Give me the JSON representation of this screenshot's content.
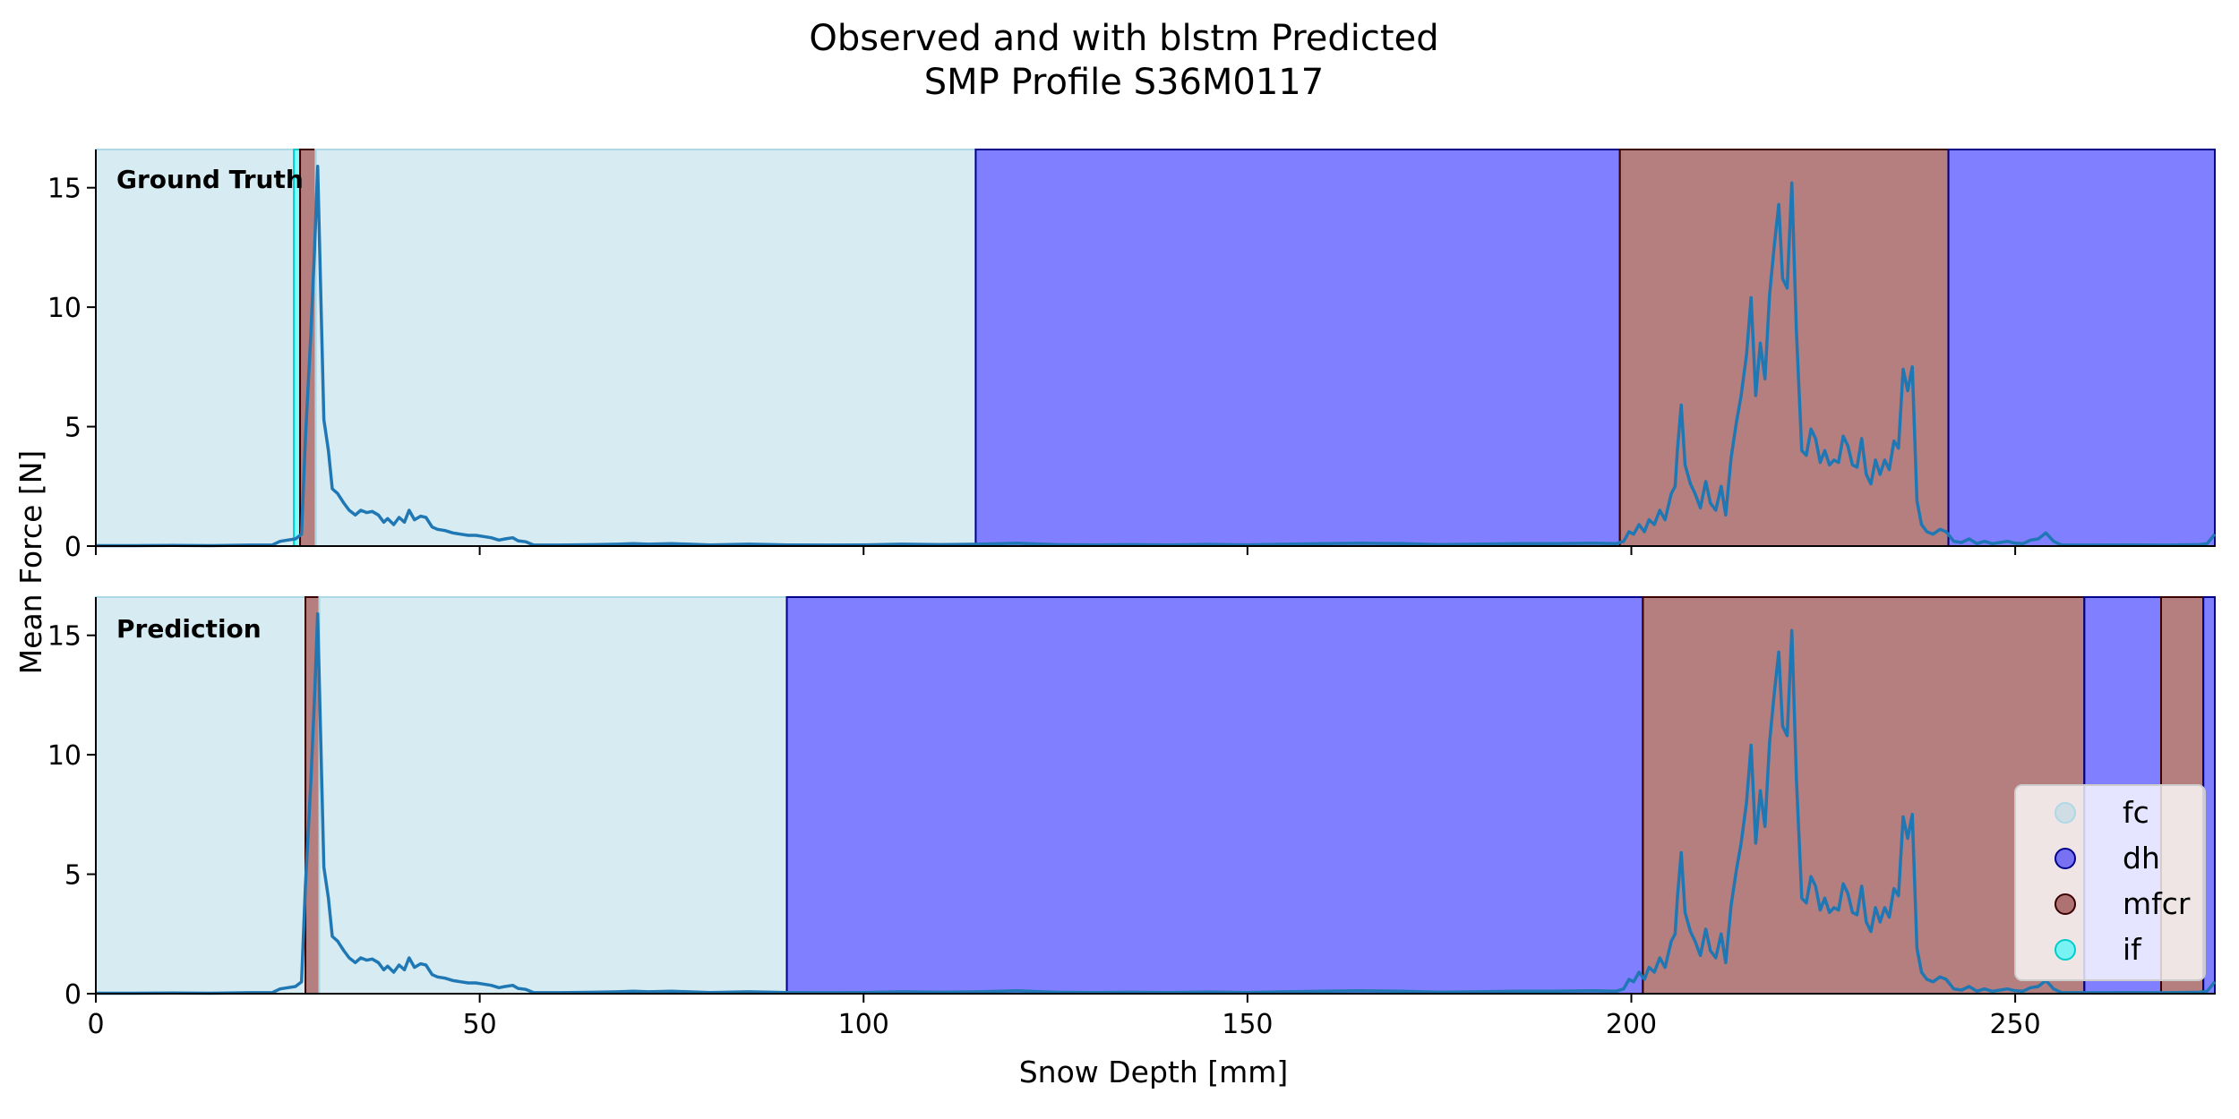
{
  "figure": {
    "title_line1": "Observed and with blstm Predicted",
    "title_line2": "SMP Profile S36M0117",
    "xlabel": "Snow Depth [mm]",
    "ylabel": "Mean Force [N]"
  },
  "chart_data": {
    "type": "line",
    "x_range": [
      0,
      276
    ],
    "y_range": [
      0,
      16.6
    ],
    "x_ticks": [
      0,
      50,
      100,
      150,
      200,
      250
    ],
    "y_ticks": [
      0,
      5,
      10,
      15
    ],
    "grid": false,
    "line_color": "#1f77b4",
    "signal": {
      "name": "Mean Force",
      "points": [
        [
          0,
          0.02
        ],
        [
          5,
          0.02
        ],
        [
          10,
          0.03
        ],
        [
          15,
          0.02
        ],
        [
          20,
          0.04
        ],
        [
          23,
          0.05
        ],
        [
          24,
          0.2
        ],
        [
          25,
          0.25
        ],
        [
          26,
          0.3
        ],
        [
          26.8,
          0.5
        ],
        [
          27.3,
          4.5
        ],
        [
          28,
          8.8
        ],
        [
          28.5,
          12.5
        ],
        [
          28.9,
          15.9
        ],
        [
          29.3,
          10.5
        ],
        [
          29.7,
          5.3
        ],
        [
          30.3,
          4.0
        ],
        [
          30.8,
          2.4
        ],
        [
          31.5,
          2.2
        ],
        [
          32.3,
          1.8
        ],
        [
          33,
          1.5
        ],
        [
          33.8,
          1.3
        ],
        [
          34.5,
          1.5
        ],
        [
          35.3,
          1.4
        ],
        [
          36,
          1.45
        ],
        [
          36.8,
          1.3
        ],
        [
          37.5,
          1.0
        ],
        [
          38,
          1.15
        ],
        [
          38.8,
          0.9
        ],
        [
          39.5,
          1.2
        ],
        [
          40.2,
          1.0
        ],
        [
          40.8,
          1.5
        ],
        [
          41.5,
          1.1
        ],
        [
          42.3,
          1.25
        ],
        [
          43,
          1.2
        ],
        [
          43.8,
          0.8
        ],
        [
          44.5,
          0.7
        ],
        [
          45.5,
          0.65
        ],
        [
          46.5,
          0.55
        ],
        [
          47.5,
          0.5
        ],
        [
          48.5,
          0.45
        ],
        [
          49.5,
          0.45
        ],
        [
          50.5,
          0.4
        ],
        [
          51.5,
          0.35
        ],
        [
          52.5,
          0.25
        ],
        [
          53.3,
          0.3
        ],
        [
          54.3,
          0.35
        ],
        [
          55,
          0.22
        ],
        [
          56,
          0.18
        ],
        [
          57,
          0.05
        ],
        [
          60,
          0.04
        ],
        [
          65,
          0.06
        ],
        [
          68,
          0.08
        ],
        [
          70,
          0.1
        ],
        [
          72,
          0.08
        ],
        [
          75,
          0.1
        ],
        [
          78,
          0.07
        ],
        [
          80,
          0.05
        ],
        [
          85,
          0.08
        ],
        [
          88,
          0.06
        ],
        [
          90,
          0.05
        ],
        [
          95,
          0.04
        ],
        [
          100,
          0.05
        ],
        [
          105,
          0.08
        ],
        [
          110,
          0.06
        ],
        [
          115,
          0.08
        ],
        [
          118,
          0.1
        ],
        [
          120,
          0.12
        ],
        [
          125,
          0.06
        ],
        [
          130,
          0.05
        ],
        [
          135,
          0.06
        ],
        [
          140,
          0.05
        ],
        [
          145,
          0.07
        ],
        [
          150,
          0.05
        ],
        [
          155,
          0.08
        ],
        [
          160,
          0.1
        ],
        [
          165,
          0.12
        ],
        [
          170,
          0.1
        ],
        [
          175,
          0.06
        ],
        [
          180,
          0.08
        ],
        [
          185,
          0.1
        ],
        [
          190,
          0.1
        ],
        [
          195,
          0.12
        ],
        [
          198,
          0.1
        ],
        [
          199,
          0.2
        ],
        [
          199.7,
          0.6
        ],
        [
          200.3,
          0.5
        ],
        [
          201,
          0.9
        ],
        [
          201.7,
          0.6
        ],
        [
          202.3,
          1.1
        ],
        [
          203,
          0.9
        ],
        [
          203.7,
          1.5
        ],
        [
          204.4,
          1.1
        ],
        [
          205.2,
          2.2
        ],
        [
          205.7,
          2.5
        ],
        [
          206,
          4.0
        ],
        [
          206.5,
          5.9
        ],
        [
          207,
          3.4
        ],
        [
          207.7,
          2.6
        ],
        [
          208.3,
          2.2
        ],
        [
          209,
          1.6
        ],
        [
          209.7,
          2.7
        ],
        [
          210.3,
          1.8
        ],
        [
          211,
          1.5
        ],
        [
          211.7,
          2.5
        ],
        [
          212.3,
          1.3
        ],
        [
          213,
          3.7
        ],
        [
          213.7,
          5.2
        ],
        [
          214.3,
          6.3
        ],
        [
          215,
          8.0
        ],
        [
          215.6,
          10.4
        ],
        [
          216.2,
          6.3
        ],
        [
          216.8,
          8.5
        ],
        [
          217.4,
          7.0
        ],
        [
          218,
          10.5
        ],
        [
          218.6,
          12.5
        ],
        [
          219.2,
          14.3
        ],
        [
          219.7,
          11.2
        ],
        [
          220.3,
          10.8
        ],
        [
          220.9,
          15.2
        ],
        [
          221.5,
          9.0
        ],
        [
          222.2,
          4.0
        ],
        [
          222.8,
          3.8
        ],
        [
          223.4,
          4.9
        ],
        [
          224,
          4.5
        ],
        [
          224.6,
          3.5
        ],
        [
          225.2,
          4.0
        ],
        [
          225.8,
          3.4
        ],
        [
          226.4,
          3.6
        ],
        [
          227,
          3.5
        ],
        [
          227.6,
          4.6
        ],
        [
          228.2,
          4.2
        ],
        [
          228.8,
          3.4
        ],
        [
          229.4,
          3.3
        ],
        [
          230,
          4.5
        ],
        [
          230.6,
          3.0
        ],
        [
          231.2,
          2.6
        ],
        [
          231.8,
          3.6
        ],
        [
          232.4,
          3.0
        ],
        [
          233,
          3.6
        ],
        [
          233.6,
          3.2
        ],
        [
          234.2,
          4.4
        ],
        [
          234.8,
          4.1
        ],
        [
          235.4,
          7.4
        ],
        [
          236,
          6.5
        ],
        [
          236.6,
          7.5
        ],
        [
          237.2,
          1.9
        ],
        [
          237.8,
          0.9
        ],
        [
          238.5,
          0.6
        ],
        [
          239.3,
          0.5
        ],
        [
          240.2,
          0.7
        ],
        [
          241,
          0.6
        ],
        [
          242,
          0.2
        ],
        [
          243,
          0.15
        ],
        [
          244,
          0.3
        ],
        [
          245,
          0.1
        ],
        [
          246,
          0.2
        ],
        [
          247,
          0.1
        ],
        [
          248,
          0.15
        ],
        [
          249,
          0.2
        ],
        [
          250,
          0.12
        ],
        [
          251,
          0.1
        ],
        [
          252,
          0.25
        ],
        [
          253,
          0.3
        ],
        [
          254,
          0.55
        ],
        [
          255,
          0.2
        ],
        [
          256,
          0.05
        ],
        [
          260,
          0.04
        ],
        [
          265,
          0.05
        ],
        [
          270,
          0.04
        ],
        [
          274,
          0.06
        ],
        [
          275,
          0.1
        ],
        [
          276,
          0.5
        ]
      ]
    },
    "classes": [
      {
        "name": "fc",
        "color": "#add8e6",
        "alpha": 0.5,
        "edge": "#add8e6"
      },
      {
        "name": "dh",
        "color": "#0000ff",
        "alpha": 0.5,
        "edge": "#00008b"
      },
      {
        "name": "mfcr",
        "color": "#6b0000",
        "alpha": 0.5,
        "edge": "#3a0000"
      },
      {
        "name": "if",
        "color": "#00ffff",
        "alpha": 0.5,
        "edge": "#00cccc"
      }
    ],
    "panels": [
      {
        "label": "Ground Truth",
        "segments": [
          {
            "from": 0,
            "to": 25.8,
            "class": "fc"
          },
          {
            "from": 25.8,
            "to": 26.6,
            "class": "if"
          },
          {
            "from": 26.6,
            "to": 28.6,
            "class": "mfcr"
          },
          {
            "from": 28.6,
            "to": 114.6,
            "class": "fc"
          },
          {
            "from": 114.6,
            "to": 198.5,
            "class": "dh"
          },
          {
            "from": 198.5,
            "to": 241.3,
            "class": "mfcr"
          },
          {
            "from": 241.3,
            "to": 276,
            "class": "dh"
          }
        ]
      },
      {
        "label": "Prediction",
        "segments": [
          {
            "from": 0,
            "to": 27.3,
            "class": "fc"
          },
          {
            "from": 27.3,
            "to": 29.1,
            "class": "mfcr"
          },
          {
            "from": 29.1,
            "to": 90,
            "class": "fc"
          },
          {
            "from": 90,
            "to": 201.5,
            "class": "dh"
          },
          {
            "from": 201.5,
            "to": 259,
            "class": "mfcr"
          },
          {
            "from": 259,
            "to": 269,
            "class": "dh"
          },
          {
            "from": 269,
            "to": 274.5,
            "class": "mfcr"
          },
          {
            "from": 274.5,
            "to": 276,
            "class": "dh"
          }
        ]
      }
    ],
    "legend": {
      "placement": "lower-right of bottom panel",
      "entries": [
        "fc",
        "dh",
        "mfcr",
        "if"
      ]
    }
  }
}
